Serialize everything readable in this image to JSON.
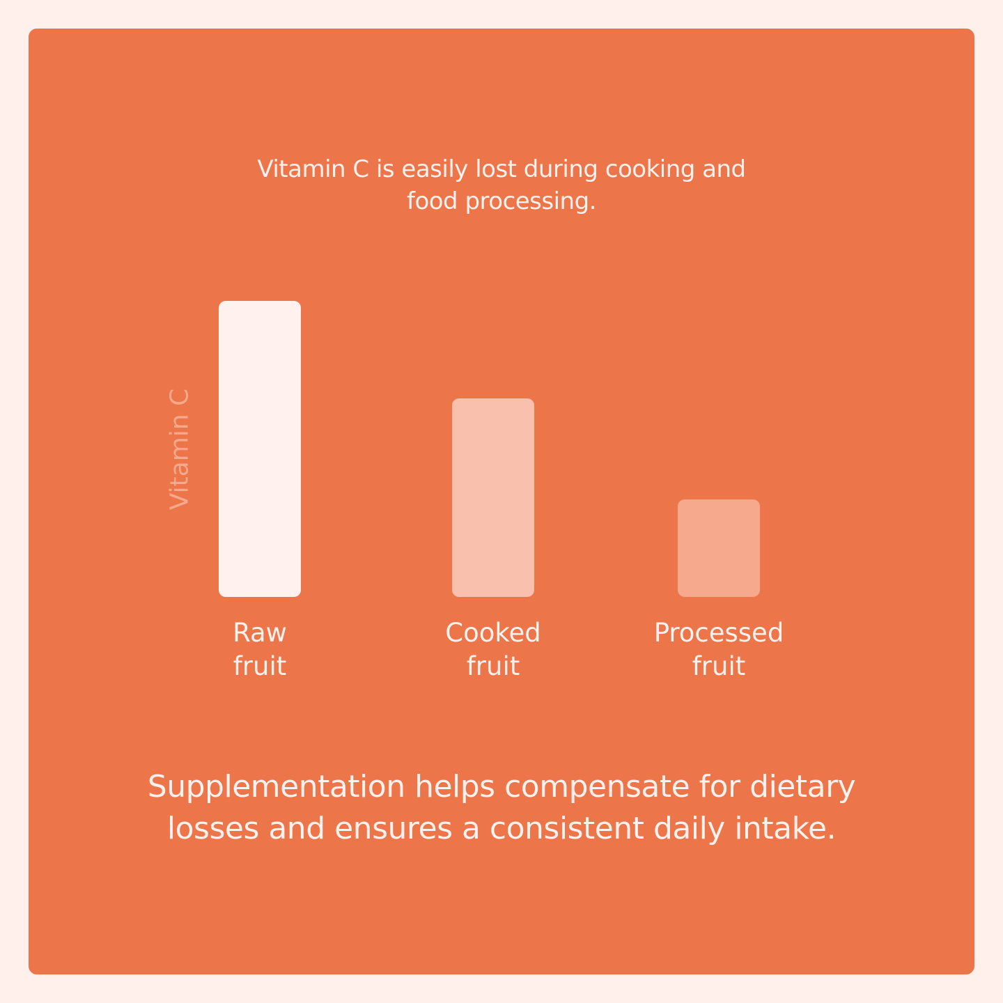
{
  "chart_data": {
    "type": "bar",
    "title": "Vitamin C is easily lost during cooking and food processing.",
    "ylabel": "Vitamin C",
    "categories": [
      "Raw fruit",
      "Cooked fruit",
      "Processed fruit"
    ],
    "values": [
      100,
      67,
      33
    ],
    "colors": [
      "#fff1ee",
      "#f9c0ad",
      "#f6a98c"
    ],
    "caption": "Supplementation helps compensate for dietary losses and ensures a consistent daily intake."
  }
}
